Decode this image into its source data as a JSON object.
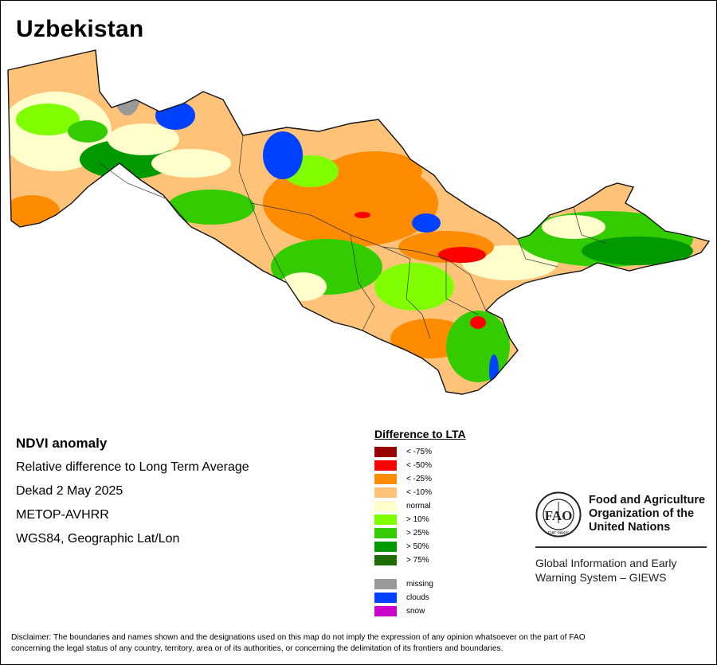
{
  "title": "Uzbekistan",
  "info": {
    "heading": "NDVI anomaly",
    "line1": "Relative difference to Long Term Average",
    "line2": "Dekad 2 May 2025",
    "line3": "METOP-AVHRR",
    "line4": "WGS84, Geographic Lat/Lon"
  },
  "legend": {
    "title": "Difference to LTA",
    "items": [
      {
        "label": "< -75%",
        "color": "#9b0000"
      },
      {
        "label": "< -50%",
        "color": "#ff0000"
      },
      {
        "label": "< -25%",
        "color": "#ff8c00"
      },
      {
        "label": "< -10%",
        "color": "#fec379"
      },
      {
        "label": "normal",
        "color": "#ffffcc"
      },
      {
        "label": "> 10%",
        "color": "#7fff00"
      },
      {
        "label": "> 25%",
        "color": "#33cc00"
      },
      {
        "label": "> 50%",
        "color": "#009900"
      },
      {
        "label": "> 75%",
        "color": "#1e6b00"
      }
    ],
    "extra": [
      {
        "label": "missing",
        "color": "#999999"
      },
      {
        "label": "clouds",
        "color": "#0040ff"
      },
      {
        "label": "snow",
        "color": "#cc00cc"
      }
    ]
  },
  "fao": {
    "name_line1": "Food and Agriculture",
    "name_line2": "Organization of the",
    "name_line3": "United Nations",
    "logo_text": "FAO",
    "logo_motto": "FIAT PANIS",
    "giews_line1": "Global Information and Early",
    "giews_line2": "Warning System – GIEWS"
  },
  "disclaimer_line1": "Disclaimer: The boundaries and names shown and the designations used on this map do not imply the expression of any opinion whatsoever on the part of FAO",
  "disclaimer_line2": "concerning the legal status of any country, territory, area or of its authorities, or concerning the delimitation of its frontiers and boundaries."
}
